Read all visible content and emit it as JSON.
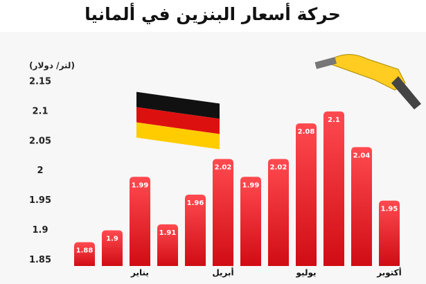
{
  "chart_data": {
    "type": "bar",
    "title": "حركة أسعار البنزين في ألمانيا",
    "y_label": "(لتر/ دولار)",
    "categories": [
      null,
      null,
      "يناير",
      null,
      null,
      "أبريل",
      null,
      null,
      "يوليو",
      null,
      null,
      "أكتوبر"
    ],
    "values": [
      1.88,
      1.9,
      1.99,
      1.91,
      1.96,
      2.02,
      1.99,
      2.02,
      2.08,
      2.1,
      2.04,
      1.95
    ],
    "color": "#e8141c",
    "ylim": [
      1.84,
      2.15
    ],
    "yticks": [
      1.85,
      1.9,
      1.95,
      2,
      2.05,
      2.1,
      2.15
    ],
    "grid": false
  }
}
